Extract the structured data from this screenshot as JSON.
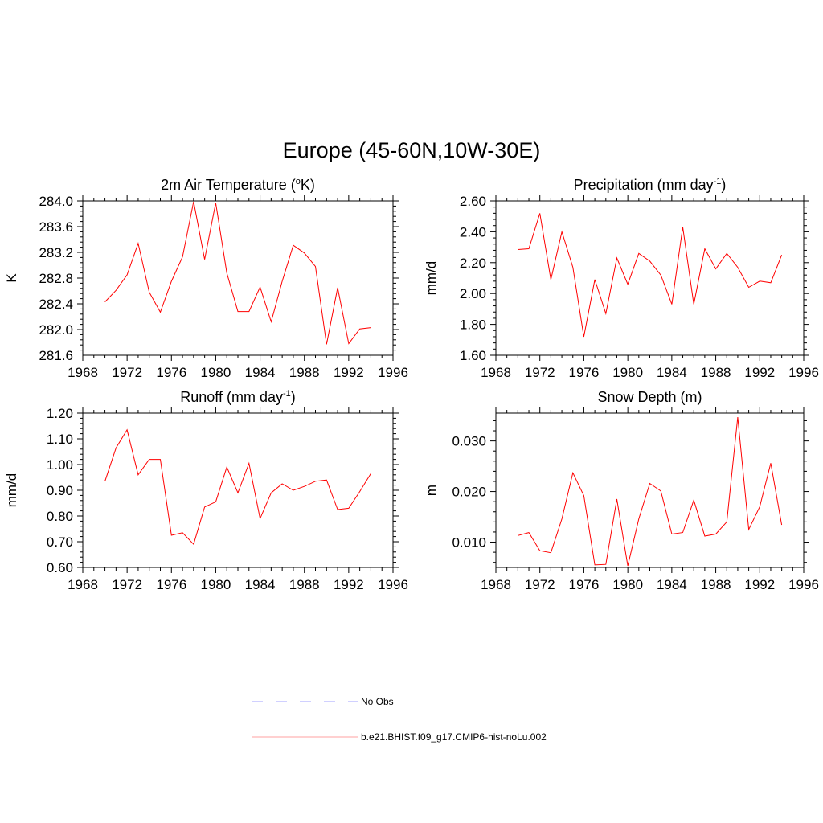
{
  "figure": {
    "title": "Europe (45-60N,10W-30E)",
    "background": "#ffffff",
    "line_color": "#ff0000",
    "legend": [
      {
        "label": "No Obs",
        "color": "#b3b3ff",
        "dash": true
      },
      {
        "label": "b.e21.BHIST.f09_g17.CMIP6-hist-noLu.002",
        "color": "#ffb3b3",
        "dash": false
      }
    ]
  },
  "chart_data": [
    {
      "type": "line",
      "title": "2m Air Temperature (",
      "title_sup": "o",
      "title_after": "K)",
      "ylabel": "K",
      "xlim": [
        1968,
        1996
      ],
      "xticks": [
        "1968",
        "1972",
        "1976",
        "1980",
        "1984",
        "1988",
        "1992",
        "1996"
      ],
      "ylim": [
        281.6,
        284.0
      ],
      "yticks": [
        "281.6",
        "282.0",
        "282.4",
        "282.8",
        "283.2",
        "283.6",
        "284.0"
      ],
      "series": [
        {
          "color": "#ff0000",
          "x": [
            1970,
            1971,
            1972,
            1973,
            1974,
            1975,
            1976,
            1977,
            1978,
            1979,
            1980,
            1981,
            1982,
            1983,
            1984,
            1985,
            1986,
            1987,
            1988,
            1989,
            1990,
            1991,
            1992,
            1993,
            1994
          ],
          "y": [
            282.43,
            282.61,
            282.85,
            283.34,
            282.58,
            282.27,
            282.75,
            283.13,
            283.99,
            283.09,
            283.97,
            282.88,
            282.28,
            282.28,
            282.66,
            282.12,
            282.75,
            283.31,
            283.19,
            282.98,
            281.77,
            282.65,
            281.78,
            282.01,
            282.03
          ]
        }
      ]
    },
    {
      "type": "line",
      "title": "Precipitation (mm day",
      "title_sup": "-1",
      "title_after": ")",
      "ylabel": "mm/d",
      "xlim": [
        1968,
        1996
      ],
      "xticks": [
        "1968",
        "1972",
        "1976",
        "1980",
        "1984",
        "1988",
        "1992",
        "1996"
      ],
      "ylim": [
        1.6,
        2.6
      ],
      "yticks": [
        "1.60",
        "1.80",
        "2.00",
        "2.20",
        "2.40",
        "2.60"
      ],
      "series": [
        {
          "color": "#ff0000",
          "x": [
            1970,
            1971,
            1972,
            1973,
            1974,
            1975,
            1976,
            1977,
            1978,
            1979,
            1980,
            1981,
            1982,
            1983,
            1984,
            1985,
            1986,
            1987,
            1988,
            1989,
            1990,
            1991,
            1992,
            1993,
            1994
          ],
          "y": [
            2.285,
            2.29,
            2.52,
            2.09,
            2.4,
            2.17,
            1.72,
            2.09,
            1.87,
            2.23,
            2.06,
            2.26,
            2.21,
            2.12,
            1.93,
            2.43,
            1.93,
            2.29,
            2.16,
            2.26,
            2.17,
            2.04,
            2.08,
            2.07,
            2.25
          ]
        }
      ]
    },
    {
      "type": "line",
      "title": "Runoff (mm day",
      "title_sup": "-1",
      "title_after": ")",
      "ylabel": "mm/d",
      "xlim": [
        1968,
        1996
      ],
      "xticks": [
        "1968",
        "1972",
        "1976",
        "1980",
        "1984",
        "1988",
        "1992",
        "1996"
      ],
      "ylim": [
        0.6,
        1.2
      ],
      "yticks": [
        "0.60",
        "0.70",
        "0.80",
        "0.90",
        "1.00",
        "1.10",
        "1.20"
      ],
      "series": [
        {
          "color": "#ff0000",
          "x": [
            1970,
            1971,
            1972,
            1973,
            1974,
            1975,
            1976,
            1977,
            1978,
            1979,
            1980,
            1981,
            1982,
            1983,
            1984,
            1985,
            1986,
            1987,
            1988,
            1989,
            1990,
            1991,
            1992,
            1993,
            1994
          ],
          "y": [
            0.935,
            1.065,
            1.135,
            0.96,
            1.02,
            1.02,
            0.725,
            0.735,
            0.69,
            0.835,
            0.855,
            0.99,
            0.89,
            1.005,
            0.79,
            0.89,
            0.925,
            0.9,
            0.915,
            0.935,
            0.94,
            0.825,
            0.83,
            0.895,
            0.965
          ]
        }
      ]
    },
    {
      "type": "line",
      "title": "Snow Depth (m)",
      "title_sup": "",
      "title_after": "",
      "ylabel": "m",
      "xlim": [
        1968,
        1996
      ],
      "xticks": [
        "1968",
        "1972",
        "1976",
        "1980",
        "1984",
        "1988",
        "1992",
        "1996"
      ],
      "ylim": [
        0.005,
        0.0355
      ],
      "yticks": [
        "0.010",
        "0.020",
        "0.030"
      ],
      "ytick_values": [
        0.01,
        0.02,
        0.03
      ],
      "series": [
        {
          "color": "#ff0000",
          "x": [
            1970,
            1971,
            1972,
            1973,
            1974,
            1975,
            1976,
            1977,
            1978,
            1979,
            1980,
            1981,
            1982,
            1983,
            1984,
            1985,
            1986,
            1987,
            1988,
            1989,
            1990,
            1991,
            1992,
            1993,
            1994
          ],
          "y": [
            0.0113,
            0.0119,
            0.0083,
            0.0079,
            0.0146,
            0.0237,
            0.0192,
            0.0055,
            0.0056,
            0.0185,
            0.0053,
            0.0146,
            0.0216,
            0.0201,
            0.0116,
            0.0119,
            0.0183,
            0.0112,
            0.0116,
            0.014,
            0.0347,
            0.0125,
            0.017,
            0.0256,
            0.0134
          ]
        }
      ]
    }
  ]
}
